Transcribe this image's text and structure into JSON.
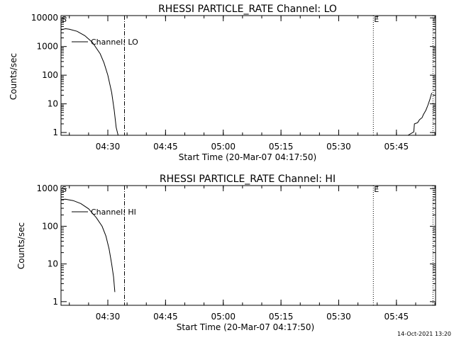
{
  "timestamp": "14-Oct-2021 13:20",
  "chart_data": [
    {
      "type": "line",
      "title": "RHESSI PARTICLE_RATE Channel: LO",
      "xlabel": "Start Time (20-Mar-07 04:17:50)",
      "ylabel": "Counts/sec",
      "y_scale": "log",
      "x_range": [
        "04:17:50",
        "05:55:10"
      ],
      "ylim": [
        0.8,
        12000
      ],
      "x_ticks": [
        "04:30",
        "04:45",
        "05:00",
        "05:15",
        "05:30",
        "05:45"
      ],
      "y_ticks": [
        "1",
        "10",
        "100",
        "1000",
        "10000"
      ],
      "legend": "Channel: LO",
      "markers": [
        {
          "label": "S",
          "time": "04:17:50",
          "style": "none"
        },
        {
          "label": "",
          "time": "04:34:20",
          "style": "dashdot"
        },
        {
          "label": "E",
          "time": "05:39:00",
          "style": "dotted"
        },
        {
          "label": "",
          "time": "05:54:30",
          "style": "dotted"
        }
      ],
      "series": [
        {
          "name": "Channel: LO",
          "x": [
            "04:17:50",
            "04:19:00",
            "04:20:00",
            "04:22:00",
            "04:24:00",
            "04:26:00",
            "04:28:00",
            "04:29:00",
            "04:30:00",
            "04:31:00",
            "04:31:40",
            "04:32:10",
            "04:32:40"
          ],
          "y": [
            3800,
            4200,
            4000,
            3400,
            2400,
            1400,
            560,
            270,
            100,
            25,
            6,
            1.5,
            0.8
          ]
        },
        {
          "name": "Channel: LO",
          "x": [
            "05:48:00",
            "05:49:30",
            "05:49:40",
            "05:50:30",
            "05:51:00",
            "05:51:40",
            "05:52:00",
            "05:52:40",
            "05:53:10",
            "05:53:40",
            "05:54:10"
          ],
          "y": [
            0.8,
            1.05,
            2.0,
            2.2,
            2.8,
            3.3,
            4.2,
            6.0,
            9.0,
            14,
            24
          ]
        }
      ]
    },
    {
      "type": "line",
      "title": "RHESSI PARTICLE_RATE Channel: HI",
      "xlabel": "Start Time (20-Mar-07 04:17:50)",
      "ylabel": "Counts/sec",
      "y_scale": "log",
      "x_range": [
        "04:17:50",
        "05:55:10"
      ],
      "ylim": [
        0.8,
        1200
      ],
      "x_ticks": [
        "04:30",
        "04:45",
        "05:00",
        "05:15",
        "05:30",
        "05:45"
      ],
      "y_ticks": [
        "1",
        "10",
        "100",
        "1000"
      ],
      "legend": "Channel: HI",
      "markers": [
        {
          "label": "S",
          "time": "04:17:50",
          "style": "none"
        },
        {
          "label": "",
          "time": "04:34:20",
          "style": "dashdot"
        },
        {
          "label": "E",
          "time": "05:39:00",
          "style": "dotted"
        },
        {
          "label": "",
          "time": "05:54:30",
          "style": "dotted"
        }
      ],
      "series": [
        {
          "name": "Channel: HI",
          "x": [
            "04:17:50",
            "04:19:00",
            "04:21:00",
            "04:23:00",
            "04:25:00",
            "04:27:00",
            "04:28:30",
            "04:29:30",
            "04:30:20",
            "04:31:00",
            "04:31:30",
            "04:31:50"
          ],
          "y": [
            510,
            520,
            480,
            400,
            290,
            170,
            100,
            55,
            25,
            10,
            4.5,
            1.8
          ]
        }
      ]
    }
  ]
}
